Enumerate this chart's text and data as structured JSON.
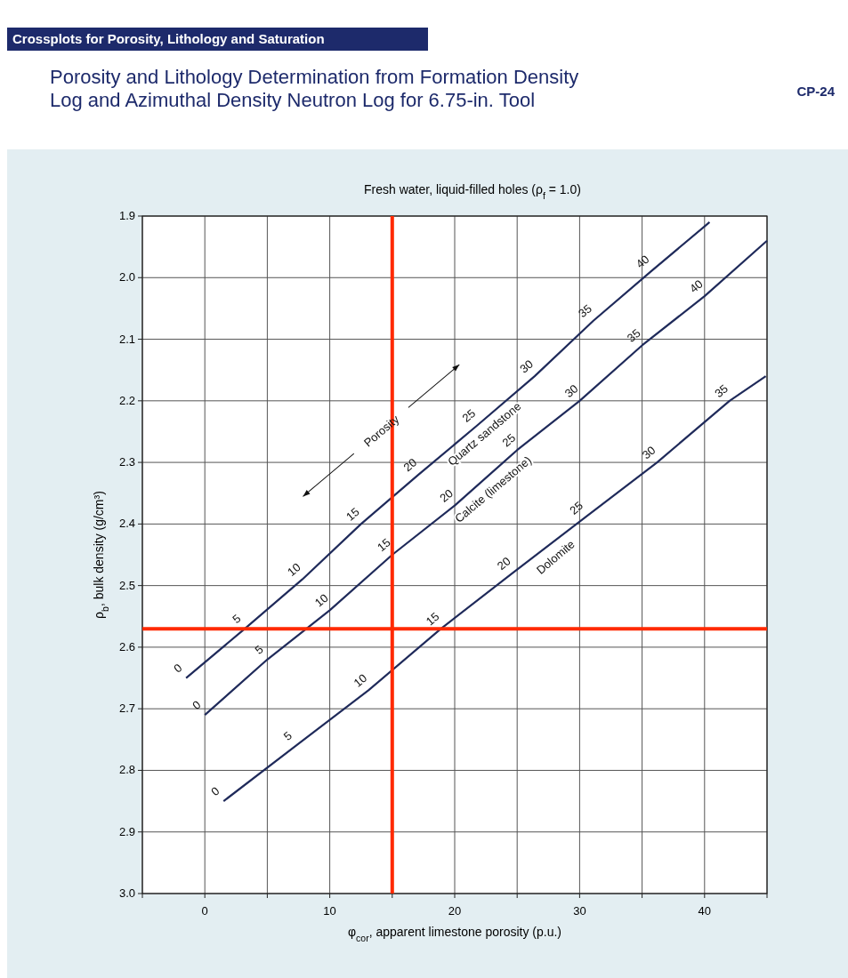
{
  "chart_data": {
    "type": "line",
    "title": "Porosity and Lithology Determination from Formation Density Log and Azimuthal Density Neutron Log for 6.75-in. Tool",
    "subtitle": "Fresh water, liquid-filled holes (ρ$_{f}$ = 1.0)",
    "xlabel": "φ$_{cor}$, apparent limestone porosity (p.u.)",
    "ylabel": "ρ$_{b}$, bulk density (g/cm³)",
    "series": [
      {
        "x": [
          -1.5,
          3.2,
          7.8,
          12.5,
          17.1,
          21.8,
          26.4,
          31.1,
          35.7,
          40.4
        ],
        "values": [
          2.65,
          2.57,
          2.49,
          2.4,
          2.32,
          2.24,
          2.16,
          2.07,
          1.99,
          1.91
        ],
        "color": "#1f2a5a"
      },
      {
        "x": [
          0,
          5,
          10,
          15,
          20,
          25,
          30,
          35,
          40,
          45
        ],
        "values": [
          2.71,
          2.62,
          2.54,
          2.45,
          2.37,
          2.28,
          2.2,
          2.11,
          2.03,
          1.94
        ],
        "color": "#1f2a5a"
      },
      {
        "x": [
          1.5,
          7.3,
          13.1,
          18.9,
          24.6,
          30.4,
          36.2,
          42,
          44.9
        ],
        "values": [
          2.85,
          2.76,
          2.67,
          2.57,
          2.48,
          2.39,
          2.3,
          2.2,
          2.16
        ],
        "color": "#1f2a5a"
      }
    ],
    "xlim": [
      -5,
      45
    ],
    "xticks": [
      {
        "value": -5,
        "label": null
      },
      0,
      {
        "value": 5,
        "label": null
      },
      10,
      {
        "value": 15,
        "label": null
      },
      20,
      {
        "value": 25,
        "label": null
      },
      30,
      {
        "value": 35,
        "label": null
      },
      40,
      {
        "value": 45,
        "label": null
      }
    ],
    "ylim": [
      3.0,
      1.9
    ],
    "yticks": [
      1.9,
      {
        "value": 2,
        "label": "2.0"
      },
      2.1,
      2.2,
      2.3,
      2.4,
      2.5,
      2.6,
      2.7,
      2.8,
      2.9,
      {
        "value": 3,
        "label": "3.0"
      }
    ],
    "grid": true,
    "marker": "none",
    "line_style": "solid",
    "ref_lines": [
      {
        "axis": "x",
        "value": 15,
        "color": "#ff2a00"
      },
      {
        "axis": "y",
        "value": 2.57,
        "color": "#ff2a00"
      }
    ],
    "annotations": [
      "Crossplots for Porosity, Lithology and Saturation",
      "CP-24",
      "Porosity",
      {
        "text": "Quartz sandstone",
        "x": 21.8,
        "y": 2.24
      },
      {
        "text": "Calcite (limestone)",
        "x": 22.5,
        "y": 2.33
      },
      {
        "text": "Dolomite",
        "x": 27.5,
        "y": 2.44
      },
      {
        "text": "0",
        "x": -1.5,
        "y": 2.65
      },
      {
        "text": "5",
        "x": 3.2,
        "y": 2.57
      },
      {
        "text": "10",
        "x": 7.8,
        "y": 2.49
      },
      {
        "text": "15",
        "x": 12.5,
        "y": 2.4
      },
      {
        "text": "20",
        "x": 17.1,
        "y": 2.32
      },
      {
        "text": "25",
        "x": 21.8,
        "y": 2.24
      },
      {
        "text": "30",
        "x": 26.4,
        "y": 2.16
      },
      {
        "text": "35",
        "x": 31.1,
        "y": 2.07
      },
      {
        "text": "40",
        "x": 35.7,
        "y": 1.99
      },
      {
        "text": "0",
        "x": 0,
        "y": 2.71
      },
      {
        "text": "5",
        "x": 5,
        "y": 2.62
      },
      {
        "text": "10",
        "x": 10,
        "y": 2.54
      },
      {
        "text": "15",
        "x": 15,
        "y": 2.45
      },
      {
        "text": "20",
        "x": 20,
        "y": 2.37
      },
      {
        "text": "25",
        "x": 25,
        "y": 2.28
      },
      {
        "text": "30",
        "x": 30,
        "y": 2.2
      },
      {
        "text": "35",
        "x": 35,
        "y": 2.11
      },
      {
        "text": "40",
        "x": 40,
        "y": 2.03
      },
      {
        "text": "0",
        "x": 1.5,
        "y": 2.85
      },
      {
        "text": "5",
        "x": 7.3,
        "y": 2.76
      },
      {
        "text": "10",
        "x": 13.1,
        "y": 2.67
      },
      {
        "text": "15",
        "x": 18.9,
        "y": 2.57
      },
      {
        "text": "20",
        "x": 24.6,
        "y": 2.48
      },
      {
        "text": "25",
        "x": 30.4,
        "y": 2.39
      },
      {
        "text": "30",
        "x": 36.2,
        "y": 2.3
      },
      {
        "text": "35",
        "x": 42,
        "y": 2.2
      }
    ]
  }
}
